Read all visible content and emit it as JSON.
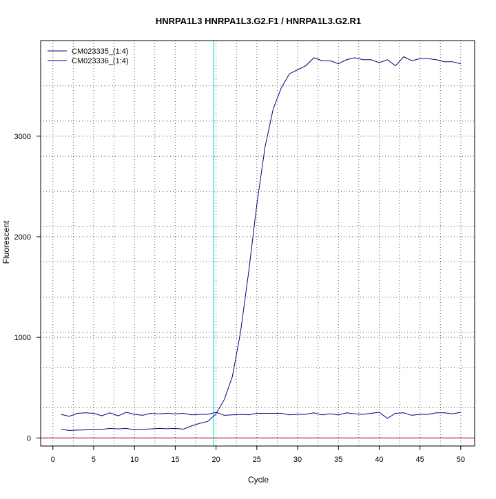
{
  "chart_data": {
    "type": "line",
    "title": "HNRPA1L3  HNRPA1L3.G2.F1 / HNRPA1L3.G2.R1",
    "xlabel": "Cycle",
    "ylabel": "Fluorescent",
    "xlim": [
      -1.5,
      51.7
    ],
    "ylim": [
      -80,
      3950
    ],
    "x_ticks": [
      0,
      5,
      10,
      15,
      20,
      25,
      30,
      35,
      40,
      45,
      50
    ],
    "y_ticks": [
      0,
      1000,
      2000,
      3000
    ],
    "x_grid": [
      2.5,
      7.5,
      12.5,
      17.5,
      22.5,
      27.5,
      32.5,
      37.5,
      42.5,
      47.5
    ],
    "y_grid": [
      300,
      700,
      1050,
      1400,
      1750,
      2100,
      2450,
      2800,
      3150,
      3500
    ],
    "grid": true,
    "legend_position": "top-left",
    "threshold_x": 19.7,
    "threshold_color": "#00e5ee",
    "baseline_y": 0,
    "baseline_color": "#b22222",
    "series": [
      {
        "name": "CM023335_(1:4)",
        "color": "#000080",
        "x": [
          1,
          2,
          3,
          4,
          5,
          6,
          7,
          8,
          9,
          10,
          11,
          12,
          13,
          14,
          15,
          16,
          17,
          18,
          19,
          20,
          21,
          22,
          23,
          24,
          25,
          26,
          27,
          28,
          29,
          30,
          31,
          32,
          33,
          34,
          35,
          36,
          37,
          38,
          39,
          40,
          41,
          42,
          43,
          44,
          45,
          46,
          47,
          48,
          49,
          50
        ],
        "y": [
          235,
          215,
          245,
          250,
          245,
          220,
          250,
          220,
          255,
          235,
          225,
          245,
          240,
          245,
          240,
          245,
          230,
          235,
          235,
          255,
          225,
          230,
          235,
          230,
          245,
          245,
          245,
          245,
          230,
          235,
          235,
          250,
          230,
          240,
          230,
          250,
          240,
          235,
          245,
          255,
          195,
          245,
          250,
          225,
          235,
          235,
          250,
          250,
          240,
          255
        ]
      },
      {
        "name": "CM023336_(1:4)",
        "color": "#000080",
        "x": [
          1,
          2,
          3,
          4,
          5,
          6,
          7,
          8,
          9,
          10,
          11,
          12,
          13,
          14,
          15,
          16,
          17,
          18,
          19,
          20,
          21,
          22,
          23,
          24,
          25,
          26,
          27,
          28,
          29,
          30,
          31,
          32,
          33,
          34,
          35,
          36,
          37,
          38,
          39,
          40,
          41,
          42,
          43,
          44,
          45,
          46,
          47,
          48,
          49,
          50
        ],
        "y": [
          85,
          75,
          78,
          80,
          82,
          85,
          95,
          90,
          95,
          80,
          85,
          90,
          95,
          92,
          95,
          88,
          120,
          145,
          165,
          240,
          380,
          610,
          1050,
          1650,
          2320,
          2890,
          3270,
          3480,
          3620,
          3660,
          3700,
          3780,
          3750,
          3750,
          3720,
          3760,
          3780,
          3760,
          3760,
          3730,
          3760,
          3700,
          3790,
          3750,
          3770,
          3770,
          3760,
          3740,
          3740,
          3720
        ]
      }
    ]
  }
}
